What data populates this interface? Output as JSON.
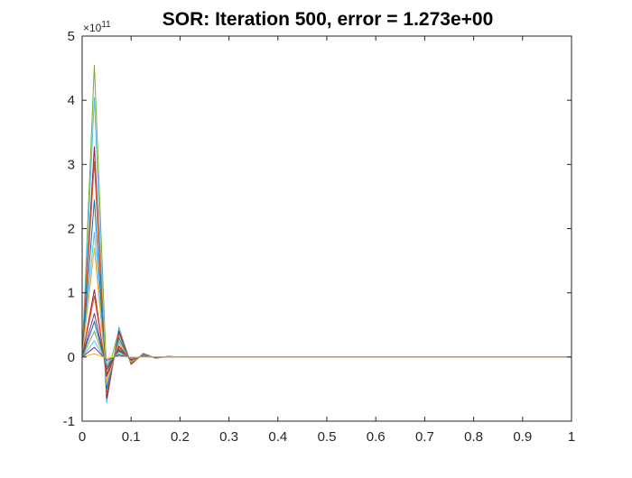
{
  "figure": {
    "title": "SOR: Iteration  500, error = 1.273e+00",
    "exponent_base": "×10",
    "exponent_power": "11"
  },
  "chart_data": {
    "type": "line",
    "title": "SOR: Iteration  500, error = 1.273e+00",
    "xlabel": "",
    "ylabel": "",
    "xlim": [
      0,
      1
    ],
    "ylim": [
      -100000000000.0,
      500000000000.0
    ],
    "y_multiplier": "×10^11",
    "grid": false,
    "legend": "none",
    "xticks": [
      "0",
      "0.1",
      "0.2",
      "0.3",
      "0.4",
      "0.5",
      "0.6",
      "0.7",
      "0.8",
      "0.9",
      "1"
    ],
    "yticks": [
      "-1",
      "0",
      "1",
      "2",
      "3",
      "4",
      "5"
    ],
    "x": [
      0,
      0.025,
      0.05,
      0.075,
      0.1,
      0.125,
      0.15,
      0.175,
      0.2,
      0.225,
      0.25,
      0.3,
      0.4,
      0.5,
      0.6,
      0.7,
      0.8,
      0.9,
      1.0
    ],
    "series": [
      {
        "color": "#77AC30",
        "values": [
          0,
          455000000000.0,
          -30000000000.0,
          42000000000.0,
          -10000000000.0,
          5000000000.0,
          -1500000000.0,
          800000000.0,
          200000000.0,
          0,
          0,
          0,
          0,
          0,
          0,
          0,
          0,
          0,
          0
        ]
      },
      {
        "color": "#4DBEEE",
        "values": [
          0,
          405000000000.0,
          -72000000000.0,
          47000000000.0,
          -12000000000.0,
          6000000000.0,
          -2000000000.0,
          1000000000.0,
          300000000.0,
          0,
          0,
          0,
          0,
          0,
          0,
          0,
          0,
          0,
          0
        ]
      },
      {
        "color": "#A2142F",
        "values": [
          0,
          328000000000.0,
          -65000000000.0,
          40000000000.0,
          -11000000000.0,
          5000000000.0,
          -1800000000.0,
          800000000.0,
          200000000.0,
          0,
          0,
          0,
          0,
          0,
          0,
          0,
          0,
          0,
          0
        ]
      },
      {
        "color": "#D95319",
        "values": [
          0,
          305000000000.0,
          -58000000000.0,
          36000000000.0,
          -10000000000.0,
          4500000000.0,
          -1600000000.0,
          700000000.0,
          200000000.0,
          0,
          0,
          0,
          0,
          0,
          0,
          0,
          0,
          0,
          0
        ]
      },
      {
        "color": "#0072BD",
        "values": [
          0,
          245000000000.0,
          -50000000000.0,
          30000000000.0,
          -9000000000.0,
          4000000000.0,
          -1400000000.0,
          600000000.0,
          100000000.0,
          0,
          0,
          0,
          0,
          0,
          0,
          0,
          0,
          0,
          0
        ]
      },
      {
        "color": "#4DBEEE",
        "values": [
          0,
          195000000000.0,
          -44000000000.0,
          25000000000.0,
          -8000000000.0,
          3500000000.0,
          -1200000000.0,
          500000000.0,
          100000000.0,
          0,
          0,
          0,
          0,
          0,
          0,
          0,
          0,
          0,
          0
        ]
      },
      {
        "color": "#EDB120",
        "values": [
          0,
          170000000000.0,
          -38000000000.0,
          22000000000.0,
          -7000000000.0,
          3000000000.0,
          -1000000000.0,
          400000000.0,
          100000000.0,
          0,
          0,
          0,
          0,
          0,
          0,
          0,
          0,
          0,
          0
        ]
      },
      {
        "color": "#A2142F",
        "values": [
          0,
          105000000000.0,
          -30000000000.0,
          17000000000.0,
          -5500000000.0,
          2500000000.0,
          -800000000.0,
          300000000.0,
          0,
          0,
          0,
          0,
          0,
          0,
          0,
          0,
          0,
          0,
          0
        ]
      },
      {
        "color": "#D95319",
        "values": [
          0,
          95000000000.0,
          -26000000000.0,
          15000000000.0,
          -5000000000.0,
          2000000000.0,
          -700000000.0,
          300000000.0,
          0,
          0,
          0,
          0,
          0,
          0,
          0,
          0,
          0,
          0,
          0
        ]
      },
      {
        "color": "#7E2F8E",
        "values": [
          0,
          68000000000.0,
          -20000000000.0,
          12000000000.0,
          -4000000000.0,
          1600000000.0,
          -500000000.0,
          200000000.0,
          0,
          0,
          0,
          0,
          0,
          0,
          0,
          0,
          0,
          0,
          0
        ]
      },
      {
        "color": "#0072BD",
        "values": [
          0,
          55000000000.0,
          -16000000000.0,
          10000000000.0,
          -3000000000.0,
          1300000000.0,
          -400000000.0,
          200000000.0,
          0,
          0,
          0,
          0,
          0,
          0,
          0,
          0,
          0,
          0,
          0
        ]
      },
      {
        "color": "#77AC30",
        "values": [
          0,
          40000000000.0,
          -12000000000.0,
          8000000000.0,
          -2500000000.0,
          1000000000.0,
          -300000000.0,
          100000000.0,
          0,
          0,
          0,
          0,
          0,
          0,
          0,
          0,
          0,
          0,
          0
        ]
      },
      {
        "color": "#4DBEEE",
        "values": [
          0,
          25000000000.0,
          -8000000000.0,
          5000000000.0,
          -1500000000.0,
          600000000.0,
          -200000000.0,
          100000000.0,
          0,
          0,
          0,
          0,
          0,
          0,
          0,
          0,
          0,
          0,
          0
        ]
      },
      {
        "color": "#7E2F8E",
        "values": [
          0,
          15000000000.0,
          -5000000000.0,
          3000000000.0,
          -1000000000.0,
          400000000.0,
          -100000000.0,
          0,
          0,
          0,
          0,
          0,
          0,
          0,
          0,
          0,
          0,
          0,
          0
        ]
      },
      {
        "color": "#EDB120",
        "values": [
          0,
          5000000000.0,
          -2000000000.0,
          1000000000.0,
          -400000000.0,
          100000000.0,
          0,
          0,
          0,
          0,
          0,
          0,
          0,
          0,
          0,
          0,
          0,
          0,
          0
        ]
      }
    ]
  }
}
